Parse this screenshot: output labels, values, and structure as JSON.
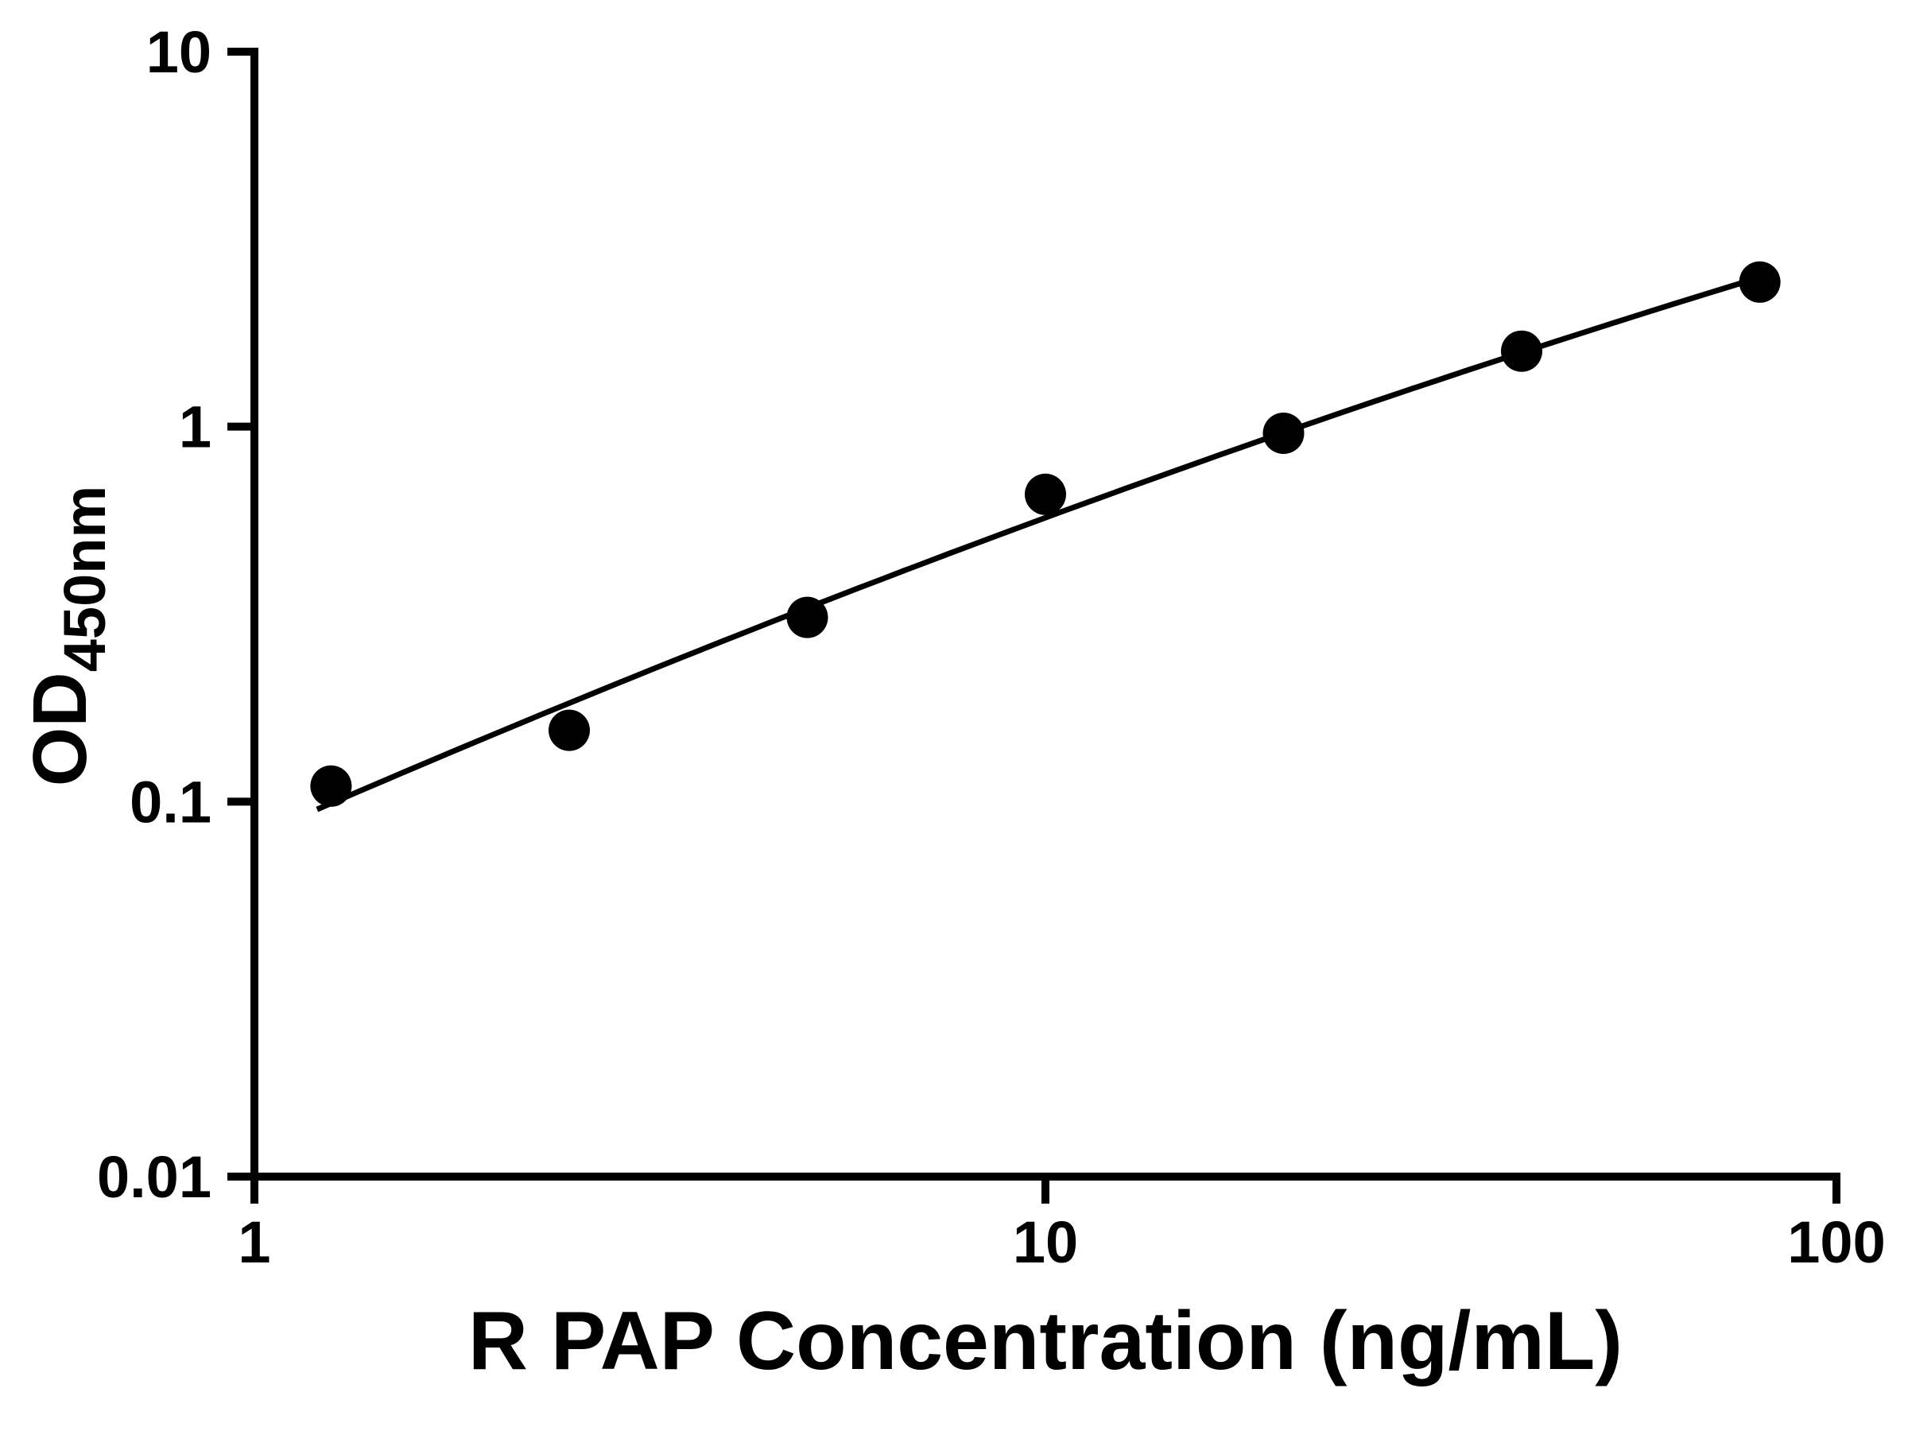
{
  "page": {
    "background": "#ffffff"
  },
  "chart_data": {
    "type": "scatter",
    "title": "",
    "xlabel": "R PAP Concentration (ng/mL)",
    "ylabel": "OD450nm",
    "ylabel_main": "OD",
    "ylabel_sub": "450nm",
    "x_scale": "log10",
    "y_scale": "log10",
    "xlim": [
      1,
      100
    ],
    "ylim": [
      0.01,
      10
    ],
    "x_ticks": [
      1,
      10,
      100
    ],
    "x_tick_labels": [
      "1",
      "10",
      "100"
    ],
    "y_ticks": [
      10,
      1,
      0.1,
      0.01
    ],
    "y_tick_labels": [
      "10",
      "1",
      "0.1",
      "0.01"
    ],
    "grid": false,
    "legend": "none",
    "series": [
      {
        "marker": "filled-circle",
        "color": "#000000",
        "x": [
          1.25,
          2.5,
          5,
          10,
          20,
          40,
          80
        ],
        "y": [
          0.11,
          0.155,
          0.31,
          0.66,
          0.96,
          1.59,
          2.43
        ]
      }
    ],
    "fit_curve": {
      "type": "quadratic_loglog_least_squares",
      "x_range": [
        1.2,
        80
      ],
      "color": "#000000"
    },
    "colors": {
      "foreground": "#000000",
      "background": "#ffffff"
    }
  }
}
